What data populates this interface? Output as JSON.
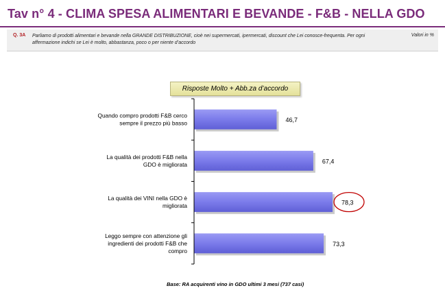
{
  "header": {
    "title": "Tav n° 4 - CLIMA SPESA ALIMENTARI E BEVANDE - F&B - NELLA GDO"
  },
  "question": {
    "code": "Q. 3A",
    "text": "Parliamo di prodotti alimentari e bevande nella GRANDE DISTRIBUZIONE, cioè nei supermercati, ipermercati, discount che Lei conosce-frequenta.  Per ogni affermazione  indichi se Lei  è molto, abbastanza, poco o per niente d’accordo",
    "unit": "Valori in %"
  },
  "chart_header": "Risposte Molto + Abb.za d’accordo",
  "footnote": "Base: RA acquirenti vino in GDO ultimi 3 mesi (737 casi)",
  "colors": {
    "title": "#7a2b7a",
    "bar": "#7b7bea",
    "highlight_circle": "#c00000"
  },
  "chart_data": {
    "type": "bar",
    "orientation": "horizontal",
    "categories": [
      "Quando compro prodotti  F&B cerco sempre il prezzo più basso",
      "La qualità dei prodotti F&B nella GDO è migliorata",
      "La qualità dei VINI nella GDO è migliorata",
      "Leggo sempre con attenzione gli ingredienti dei prodotti F&B che compro"
    ],
    "category_lines": [
      [
        "Quando compro prodotti  F&B cerco",
        "sempre il prezzo più basso"
      ],
      [
        "La qualità dei prodotti F&B nella",
        "GDO è migliorata"
      ],
      [
        "La qualità dei VINI nella GDO è",
        "migliorata"
      ],
      [
        "Leggo sempre con attenzione gli",
        "ingredienti dei prodotti F&B che",
        "compro"
      ]
    ],
    "values": [
      46.7,
      67.4,
      78.3,
      73.3
    ],
    "value_labels": [
      "46,7",
      "67,4",
      "78,3",
      "73,3"
    ],
    "highlighted_index": 2,
    "xlim": [
      0,
      100
    ],
    "grid": false,
    "legend": "none"
  }
}
